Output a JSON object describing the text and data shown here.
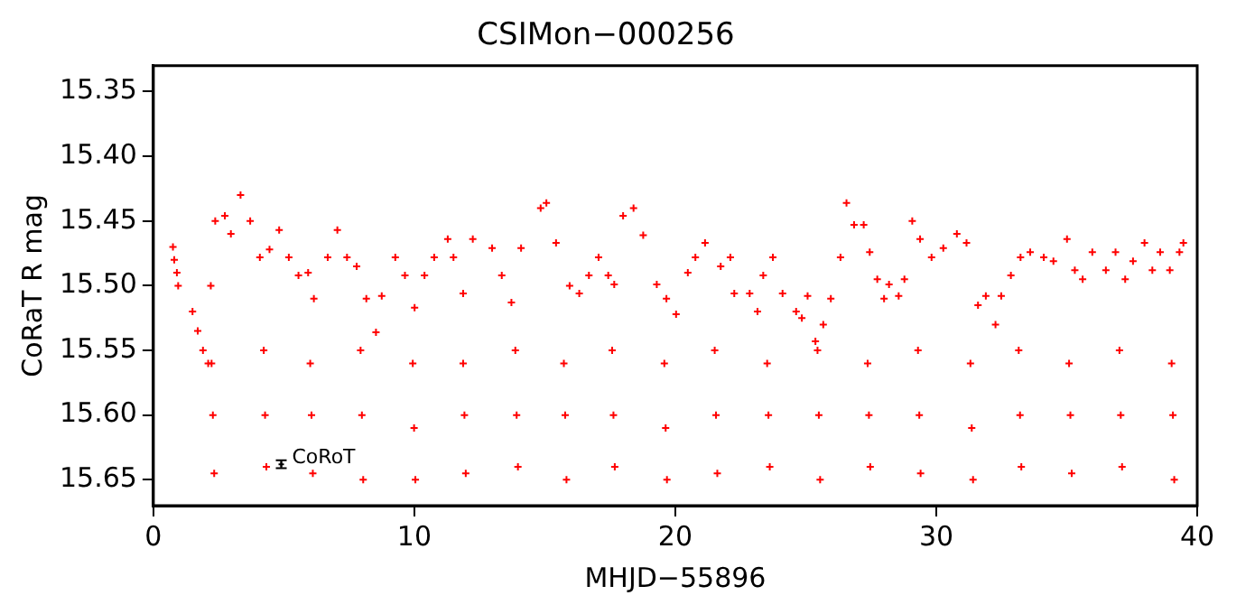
{
  "chart_data": {
    "type": "scatter",
    "title": "CSIMon−000256",
    "xlabel": "MHJD−55896",
    "ylabel": "CoRaT R mag",
    "xlim": [
      0,
      40
    ],
    "xticks": [
      0,
      10,
      20,
      30,
      40
    ],
    "ylim": [
      15.67,
      15.33
    ],
    "yticks": [
      15.35,
      {
        "value": 15.4,
        "label": "15.40"
      },
      15.45,
      {
        "value": 15.5,
        "label": "15.50"
      },
      15.55,
      {
        "value": 15.6,
        "label": "15.60"
      },
      15.65
    ],
    "grid": false,
    "legend": false,
    "marker": "cross",
    "series": [
      {
        "color": "#ff0000",
        "x": [
          0.75,
          0.8,
          0.9,
          0.95,
          1.5,
          1.7,
          1.9,
          2.1,
          2.2,
          2.37,
          2.74,
          2.97,
          3.34,
          3.71,
          4.08,
          4.45,
          4.82,
          5.19,
          5.56,
          5.93,
          6.15,
          6.68,
          7.05,
          7.42,
          7.79,
          8.16,
          8.53,
          8.75,
          9.27,
          9.64,
          10.01,
          10.39,
          10.76,
          11.28,
          11.5,
          11.87,
          12.24,
          12.98,
          13.35,
          13.72,
          14.09,
          14.84,
          15.06,
          15.43,
          15.95,
          16.32,
          16.69,
          17.06,
          17.43,
          17.66,
          18.0,
          18.4,
          18.77,
          19.29,
          19.66,
          20.03,
          20.48,
          20.77,
          21.14,
          21.74,
          22.11,
          22.26,
          22.85,
          23.15,
          23.37,
          23.74,
          24.11,
          24.63,
          24.85,
          25.07,
          25.37,
          25.67,
          25.96,
          26.33,
          26.56,
          26.85,
          27.22,
          27.45,
          27.74,
          28.0,
          28.19,
          28.56,
          28.78,
          29.08,
          29.38,
          29.82,
          30.27,
          30.79,
          31.16,
          31.6,
          31.9,
          32.27,
          32.49,
          32.86,
          33.23,
          33.6,
          34.12,
          34.49,
          35.01,
          35.31,
          35.61,
          35.98,
          36.5,
          36.87,
          37.24,
          37.54,
          37.98,
          38.28,
          38.58,
          38.95,
          39.32,
          39.47
        ],
        "values": [
          15.47,
          15.48,
          15.49,
          15.5,
          15.52,
          15.535,
          15.55,
          15.56,
          15.5,
          15.45,
          15.446,
          15.46,
          15.43,
          15.45,
          15.478,
          15.472,
          15.457,
          15.478,
          15.492,
          15.49,
          15.51,
          15.478,
          15.457,
          15.478,
          15.485,
          15.51,
          15.536,
          15.508,
          15.478,
          15.492,
          15.517,
          15.492,
          15.478,
          15.464,
          15.478,
          15.506,
          15.464,
          15.471,
          15.492,
          15.513,
          15.471,
          15.44,
          15.436,
          15.467,
          15.5,
          15.506,
          15.492,
          15.478,
          15.492,
          15.499,
          15.446,
          15.44,
          15.461,
          15.499,
          15.51,
          15.522,
          15.49,
          15.478,
          15.467,
          15.485,
          15.478,
          15.506,
          15.506,
          15.52,
          15.492,
          15.478,
          15.506,
          15.52,
          15.525,
          15.508,
          15.543,
          15.53,
          15.51,
          15.478,
          15.436,
          15.453,
          15.453,
          15.474,
          15.495,
          15.51,
          15.499,
          15.508,
          15.495,
          15.45,
          15.464,
          15.478,
          15.471,
          15.46,
          15.467,
          15.515,
          15.508,
          15.53,
          15.508,
          15.492,
          15.478,
          15.474,
          15.478,
          15.481,
          15.464,
          15.488,
          15.495,
          15.474,
          15.488,
          15.474,
          15.495,
          15.481,
          15.467,
          15.488,
          15.474,
          15.488,
          15.474,
          15.467
        ]
      },
      {
        "color": "#ff0000",
        "x": [
          2.23,
          2.28,
          2.33,
          4.23,
          4.28,
          4.33,
          6.01,
          6.06,
          6.11,
          7.94,
          7.99,
          8.04,
          9.94,
          9.99,
          10.04,
          11.87,
          11.92,
          11.97,
          13.87,
          13.92,
          13.97,
          15.73,
          15.78,
          15.83,
          17.58,
          17.63,
          17.68,
          19.58,
          19.63,
          19.68,
          21.51,
          21.56,
          21.61,
          23.52,
          23.57,
          23.62,
          25.45,
          25.5,
          25.55,
          27.37,
          27.42,
          27.47,
          29.3,
          29.35,
          29.4,
          31.31,
          31.36,
          31.41,
          33.16,
          33.21,
          33.26,
          35.09,
          35.14,
          35.19,
          37.02,
          37.07,
          37.12,
          39.02,
          39.07,
          39.12
        ],
        "values": [
          15.56,
          15.6,
          15.645,
          15.55,
          15.6,
          15.64,
          15.56,
          15.6,
          15.645,
          15.55,
          15.6,
          15.65,
          15.56,
          15.61,
          15.65,
          15.56,
          15.6,
          15.645,
          15.55,
          15.6,
          15.64,
          15.56,
          15.6,
          15.65,
          15.55,
          15.6,
          15.64,
          15.56,
          15.61,
          15.65,
          15.55,
          15.6,
          15.645,
          15.56,
          15.6,
          15.64,
          15.55,
          15.6,
          15.65,
          15.56,
          15.6,
          15.64,
          15.55,
          15.6,
          15.645,
          15.56,
          15.61,
          15.65,
          15.55,
          15.6,
          15.64,
          15.56,
          15.6,
          15.645,
          15.55,
          15.6,
          15.64,
          15.56,
          15.6,
          15.65
        ]
      },
      {
        "name": "CoRoT",
        "color": "#000000",
        "x": [
          4.9
        ],
        "values": [
          15.638
        ],
        "errors": [
          0.003
        ]
      }
    ]
  }
}
